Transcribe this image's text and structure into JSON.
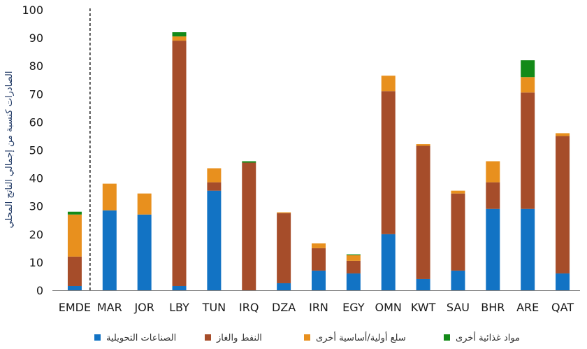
{
  "chart_data": {
    "type": "bar",
    "stacked": true,
    "title": "",
    "xlabel": "",
    "ylabel": "الصادرات كنسبة من إجمالي الناتج المحلي",
    "ylim": [
      0,
      100
    ],
    "yticks": [
      0,
      10,
      20,
      30,
      40,
      50,
      60,
      70,
      80,
      90,
      100
    ],
    "grid": false,
    "legend": "bottom",
    "separator_after_category": "EMDE",
    "categories": [
      "EMDE",
      "MAR",
      "JOR",
      "LBY",
      "TUN",
      "IRQ",
      "DZA",
      "IRN",
      "EGY",
      "OMN",
      "KWT",
      "SAU",
      "BHR",
      "ARE",
      "QAT"
    ],
    "series": [
      {
        "name": "الصناعات التحويلية",
        "color": "#1273c4",
        "values": [
          1.5,
          28.5,
          27,
          1.5,
          35.5,
          0,
          2.5,
          7,
          6,
          20,
          4,
          7,
          29,
          29,
          6
        ]
      },
      {
        "name": "النفط والغاز",
        "color": "#a64d2a",
        "values": [
          10.5,
          0,
          0,
          87.5,
          3,
          45.5,
          25,
          8,
          4.5,
          51,
          47.5,
          27.5,
          9.5,
          41.5,
          49
        ]
      },
      {
        "name": "سلع أولية/أساسية أخرى",
        "color": "#e8901e",
        "values": [
          15,
          9.5,
          7.5,
          1.5,
          5,
          0,
          0.3,
          1.7,
          2,
          5.5,
          0.6,
          1,
          7.5,
          5.5,
          1
        ]
      },
      {
        "name": "مواد غذائية أخرى",
        "color": "#138a18",
        "values": [
          1,
          0,
          0,
          1.5,
          0,
          0.5,
          0,
          0,
          0.3,
          0,
          0,
          0,
          0,
          6,
          0
        ]
      }
    ]
  }
}
